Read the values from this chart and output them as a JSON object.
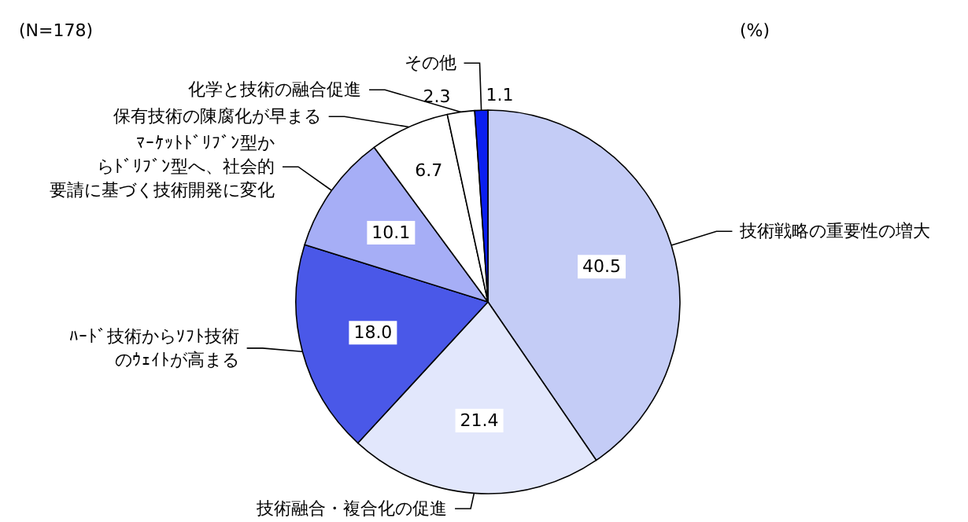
{
  "chart_data": {
    "type": "pie",
    "categories": [
      "技術戦略の重要性の増大",
      "技術融合・複合化の促進",
      "ﾊｰﾄﾞ技術からｿﾌﾄ技術のｳｪｲﾄが高まる",
      "ﾏｰｹｯﾄﾄﾞﾘﾌﾞﾝ型からﾄﾞﾘﾌﾞﾝ型へ、社会的要請に基づく技術開発に変化",
      "保有技術の陳腐化が早まる",
      "化学と技術の融合促進",
      "その他"
    ],
    "values": [
      40.5,
      21.4,
      18.0,
      10.1,
      6.7,
      2.3,
      1.1
    ],
    "colors": [
      "#c4ccf6",
      "#e2e7fc",
      "#4a58e8",
      "#a6aef6",
      "#ffffff",
      "#ffffff",
      "#0a1ef0"
    ],
    "value_labels": [
      "40.5",
      "21.4",
      "18.0",
      "10.1",
      "6.7",
      "2.3",
      "1.1"
    ],
    "annotations": [
      "(N=178)",
      "(%)"
    ],
    "legend": false
  }
}
